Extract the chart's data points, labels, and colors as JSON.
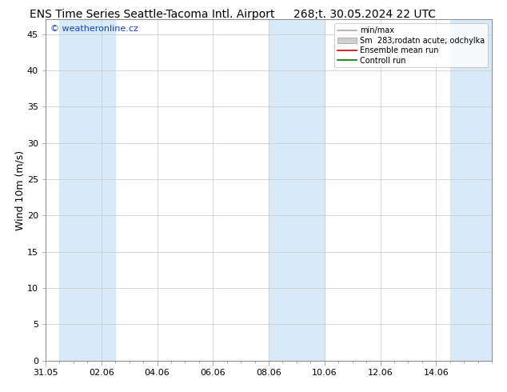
{
  "title_left": "ENS Time Series Seattle-Tacoma Intl. Airport",
  "title_right": "268;t. 30.05.2024 22 UTC",
  "ylabel": "Wind 10m (m/s)",
  "watermark": "© weatheronline.cz",
  "xmin": 0.0,
  "xmax": 16.0,
  "ymin": 0,
  "ymax": 47,
  "yticks": [
    0,
    5,
    10,
    15,
    20,
    25,
    30,
    35,
    40,
    45
  ],
  "xtick_labels": [
    "31.05",
    "02.06",
    "04.06",
    "06.06",
    "08.06",
    "10.06",
    "12.06",
    "14.06"
  ],
  "xtick_positions": [
    0,
    2,
    4,
    6,
    8,
    10,
    12,
    14
  ],
  "bg_color": "#ffffff",
  "plot_bg_color": "#ffffff",
  "shaded_bands": [
    {
      "xstart": 0.5,
      "xend": 2.5
    },
    {
      "xstart": 8.0,
      "xend": 10.0
    },
    {
      "xstart": 14.5,
      "xend": 16.0
    }
  ],
  "shaded_color": "#d8eaf8",
  "grid_color": "#c8c8c8",
  "legend_labels": [
    "min/max",
    "Sm  283;rodatn acute; odchylka",
    "Ensemble mean run",
    "Controll run"
  ],
  "legend_colors": [
    "#aaaaaa",
    "#c8c8c8",
    "#cc0000",
    "#007700"
  ],
  "title_fontsize": 10,
  "axis_label_fontsize": 9,
  "tick_fontsize": 8,
  "watermark_color": "#1144cc",
  "watermark_fontsize": 8
}
